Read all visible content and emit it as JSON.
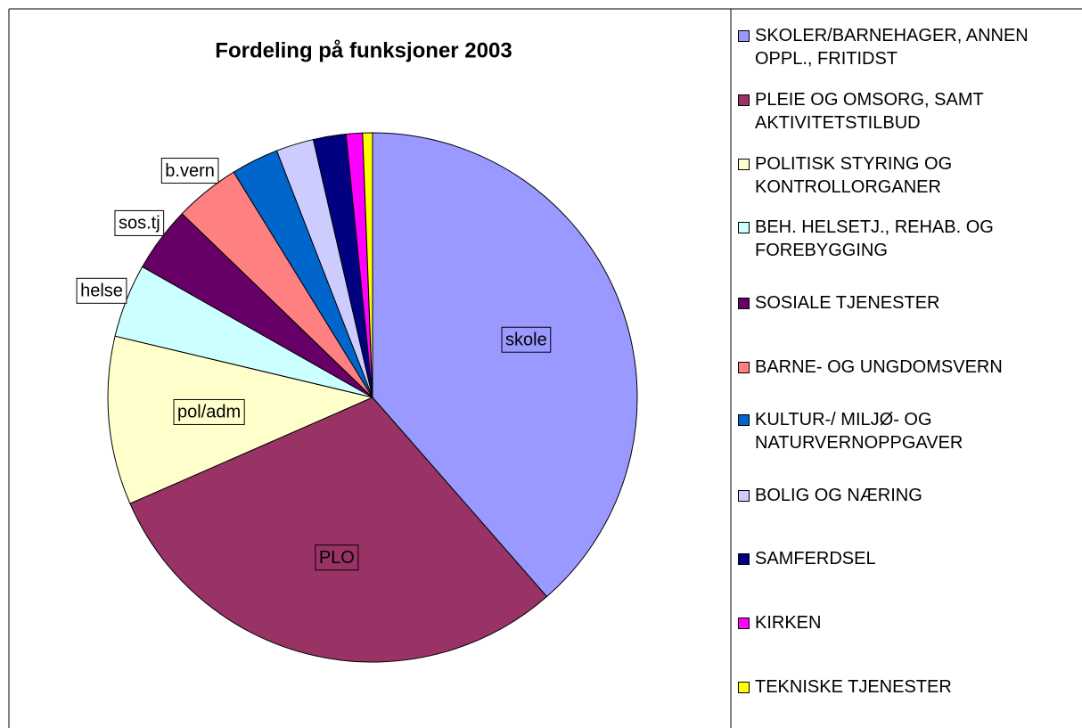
{
  "chart_data": {
    "type": "pie",
    "title": "Fordeling på funksjoner 2003",
    "categories": [
      "SKOLER/BARNEHAGER, ANNEN OPPL., FRITIDST",
      "PLEIE OG OMSORG, SAMT AKTIVITETSTILBUD",
      "POLITISK STYRING OG KONTROLLORGANER",
      "BEH. HELSETJ., REHAB. OG FOREBYGGING",
      "SOSIALE TJENESTER",
      "BARNE- OG UNGDOMSVERN",
      "KULTUR-/ MILJØ- OG NATURVERNOPPGAVER",
      "BOLIG OG NÆRING",
      "SAMFERDSEL",
      "KIRKEN",
      "TEKNISKE TJENESTER"
    ],
    "values": [
      38.6,
      29.9,
      10.3,
      4.5,
      4.0,
      4.0,
      2.9,
      2.3,
      2.0,
      1.0,
      0.6
    ],
    "labels": [
      "skole",
      "PLO",
      "pol/adm",
      "helse",
      "sos.tj",
      "b.vern",
      null,
      null,
      null,
      null,
      null
    ],
    "colors": [
      "#9999ff",
      "#993366",
      "#ffffcc",
      "#ccffff",
      "#660066",
      "#ff8080",
      "#0066cc",
      "#ccccff",
      "#000080",
      "#ff00ff",
      "#ffff00"
    ]
  }
}
